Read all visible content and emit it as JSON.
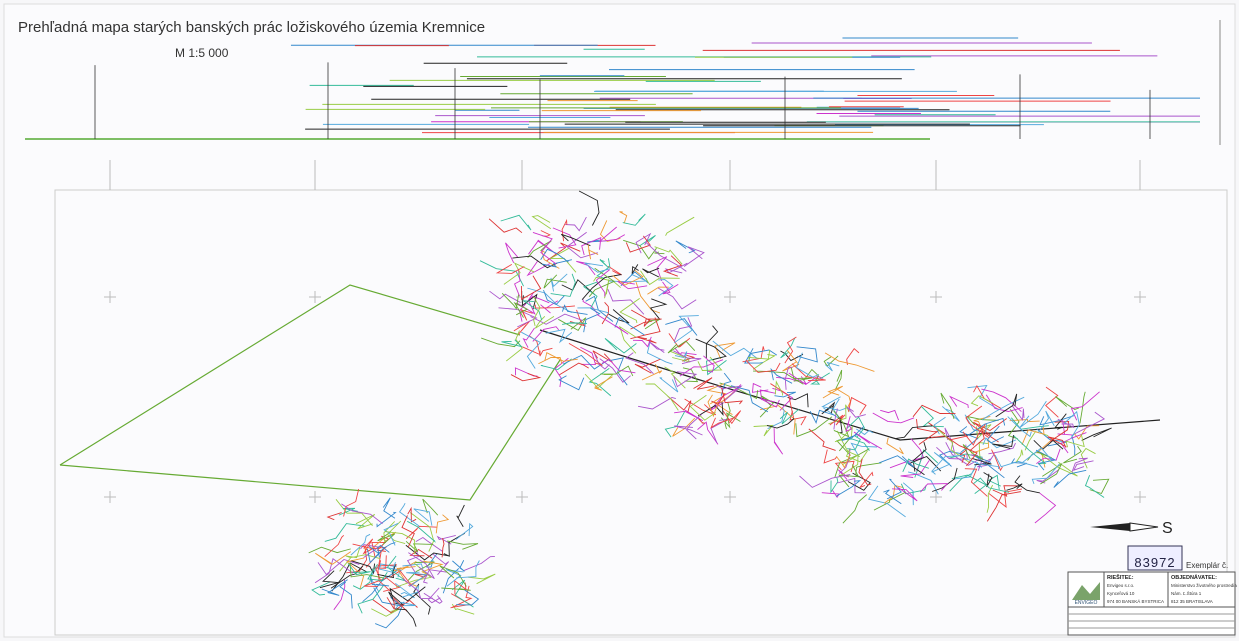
{
  "header": {
    "title": "Prehľadná mapa starých banských prác ložiskového územia Kremnice",
    "scale": "M 1:5 000"
  },
  "north_arrow": {
    "label": "S"
  },
  "stamp": {
    "number": "83972",
    "copy": "Exemplár č."
  },
  "title_block": {
    "solver_label": "RIEŠITEĽ:",
    "client_label": "OBJEDNÁVATEĽ:",
    "logo": "ENVIGEO",
    "solver_lines": [
      "Envigeo s.r.o.",
      "Kynceľová 10",
      "974 00 BANSKÁ BYSTRICA"
    ],
    "client_lines": [
      "Ministerstvo životného prostredia",
      "Nám. Ľ.Štúra 1",
      "812 35 BRATISLAVA"
    ]
  }
}
